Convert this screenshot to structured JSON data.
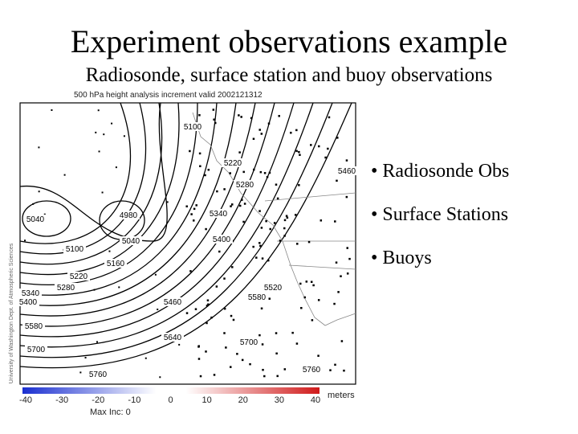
{
  "title": "Experiment observations example",
  "subtitle": "Radiosonde, surface station and buoy observations",
  "figure": {
    "title": "500 hPa height analysis increment valid 2002121312",
    "contour_labels": [
      5100,
      5220,
      5280,
      5340,
      5400,
      5460,
      5520,
      5460,
      5580,
      5640,
      5700,
      5760,
      5760,
      5700,
      5040,
      4980,
      5040,
      5100,
      5160,
      5220,
      5280,
      5340,
      5400,
      5580
    ],
    "credit": "University of Washington Dept. of Atmospheric Sciences",
    "colorbar": {
      "ticks": [
        -40,
        -30,
        -20,
        -10,
        0,
        10,
        20,
        30,
        40
      ],
      "unit": "meters",
      "note": "Max Inc: 0"
    }
  },
  "bullets": [
    "• Radiosonde Obs",
    "• Surface Stations",
    "• Buoys"
  ]
}
